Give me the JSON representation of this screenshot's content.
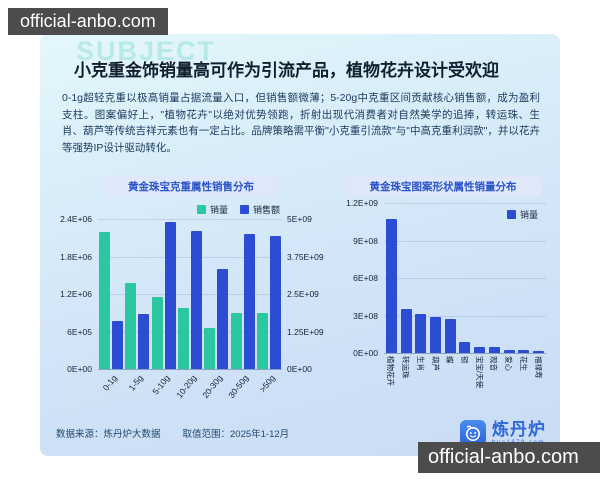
{
  "watermark_top": "official-anbo.com",
  "watermark_bottom": "official-anbo.com",
  "card": {
    "decor_word": "SUBJECT",
    "title": "小克重金饰销量高可作为引流产品，植物花卉设计受欢迎",
    "body": "0-1g超轻克重以极高销量占据流量入口，但销售额微薄；5-20g中克重区间贡献核心销售额，成为盈利支柱。图案偏好上，\"植物花卉\"以绝对优势领跑，折射出现代消费者对自然美学的追捧，转运珠、生肖、葫芦等传统吉祥元素也有一定占比。品牌策略需平衡\"小克重引流款\"与\"中高克重利润款\"，并以花卉等强势IP设计驱动转化。"
  },
  "colors": {
    "series_green": "#2bc7a0",
    "series_blue": "#2b4cd3",
    "pill_text": "#2b55c8",
    "card_top": "#e3f7fb",
    "card_bottom": "#c9dcf4"
  },
  "chart_data": [
    {
      "type": "bar",
      "title": "黄金珠宝克重属性销售分布",
      "categories": [
        "0-1g",
        "1-5g",
        "5-10g",
        "10-20g",
        "20-30g",
        "30-50g",
        ">50g"
      ],
      "series": [
        {
          "name": "销量",
          "axis": "left",
          "color": "#2bc7a0",
          "values": [
            2200000,
            1380000,
            1150000,
            980000,
            650000,
            900000,
            900000
          ]
        },
        {
          "name": "销售额",
          "axis": "right",
          "color": "#2b4cd3",
          "values": [
            1600000000,
            1850000000,
            4900000000,
            4600000000,
            3350000000,
            4500000000,
            4450000000
          ]
        }
      ],
      "left_axis": {
        "max": 2400000,
        "ticks": [
          "2.4E+06",
          "1.8E+06",
          "1.2E+06",
          "6E+05",
          "0E+00"
        ]
      },
      "right_axis": {
        "max": 5000000000,
        "ticks": [
          "5E+09",
          "3.75E+09",
          "2.5E+09",
          "1.25E+09",
          "0E+00"
        ]
      },
      "legend_position": "top-right",
      "grid": true
    },
    {
      "type": "bar",
      "title": "黄金珠宝图案形状属性销量分布",
      "categories": [
        "植物花卉",
        "转运珠",
        "生肖",
        "葫芦",
        "蝶",
        "锁",
        "宝宝/天使",
        "观音",
        "爱心",
        "花生",
        "福禄寿"
      ],
      "series": [
        {
          "name": "销量",
          "axis": "left",
          "color": "#2b4cd3",
          "values": [
            1070000000,
            350000000,
            310000000,
            285000000,
            270000000,
            85000000,
            45000000,
            45000000,
            27000000,
            27000000,
            14000000
          ]
        }
      ],
      "left_axis": {
        "max": 1200000000,
        "ticks": [
          "1.2E+09",
          "9E+08",
          "6E+08",
          "3E+08",
          "0E+00"
        ]
      },
      "legend_position": "inside-top-right",
      "grid": true
    }
  ],
  "footer": {
    "source": "数据来源：炼丹炉大数据",
    "range": "取值范围：2025年1-12月",
    "logo_text": "炼丹炉",
    "logo_sub": "hua1878.com"
  }
}
